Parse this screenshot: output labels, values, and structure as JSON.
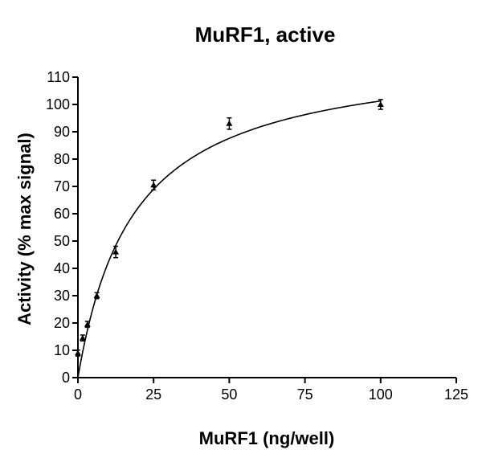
{
  "chart_data": {
    "type": "scatter",
    "title": "MuRF1, active",
    "xlabel": "MuRF1 (ng/well)",
    "ylabel": "Activity (% max signal)",
    "xlim": [
      0,
      125
    ],
    "ylim": [
      0,
      110
    ],
    "x_ticks": [
      0,
      25,
      50,
      75,
      100,
      125
    ],
    "y_ticks": [
      0,
      10,
      20,
      30,
      40,
      50,
      60,
      70,
      80,
      90,
      100,
      110
    ],
    "points": [
      {
        "x": 0,
        "y": 9,
        "err": 0.5
      },
      {
        "x": 1.56,
        "y": 14.5,
        "err": 0.5
      },
      {
        "x": 3.13,
        "y": 19.5,
        "err": 0.5
      },
      {
        "x": 6.25,
        "y": 30,
        "err": 0.5
      },
      {
        "x": 12.5,
        "y": 46,
        "err": 1.5
      },
      {
        "x": 25,
        "y": 70.5,
        "err": 1.2
      },
      {
        "x": 50,
        "y": 93,
        "err": 1.5
      },
      {
        "x": 100,
        "y": 100,
        "err": 1.2
      }
    ],
    "fit": {
      "type": "hyperbola",
      "bmax": 120,
      "kd": 18.5,
      "x_range": [
        0,
        100
      ]
    },
    "grid": false,
    "legend": "none"
  }
}
